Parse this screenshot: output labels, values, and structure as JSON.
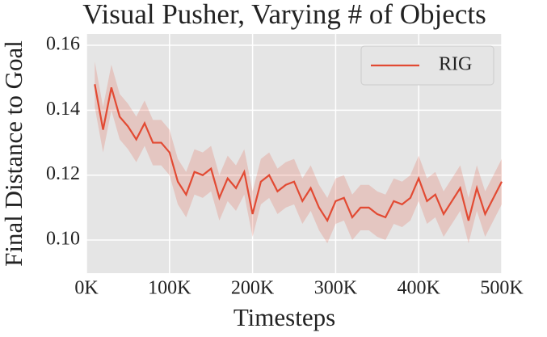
{
  "chart_data": {
    "type": "line",
    "title": "Visual Pusher, Varying # of Objects",
    "xlabel": "Timesteps",
    "ylabel": "Final Distance to Goal",
    "x": [
      10000,
      20000,
      30000,
      40000,
      50000,
      60000,
      70000,
      80000,
      90000,
      100000,
      110000,
      120000,
      130000,
      140000,
      150000,
      160000,
      170000,
      180000,
      190000,
      200000,
      210000,
      220000,
      230000,
      240000,
      250000,
      260000,
      270000,
      280000,
      290000,
      300000,
      310000,
      320000,
      330000,
      340000,
      350000,
      360000,
      370000,
      380000,
      390000,
      400000,
      410000,
      420000,
      430000,
      440000,
      450000,
      460000,
      470000,
      480000,
      490000,
      500000
    ],
    "series": [
      {
        "name": "RIG",
        "color": "#e24a33",
        "values": [
          0.148,
          0.134,
          0.147,
          0.138,
          0.135,
          0.131,
          0.136,
          0.13,
          0.13,
          0.127,
          0.118,
          0.114,
          0.121,
          0.12,
          0.122,
          0.113,
          0.119,
          0.116,
          0.121,
          0.108,
          0.118,
          0.12,
          0.115,
          0.117,
          0.118,
          0.112,
          0.116,
          0.11,
          0.106,
          0.112,
          0.113,
          0.107,
          0.11,
          0.11,
          0.108,
          0.107,
          0.112,
          0.111,
          0.113,
          0.119,
          0.112,
          0.114,
          0.108,
          0.112,
          0.116,
          0.106,
          0.116,
          0.108,
          0.113,
          0.118
        ],
        "upper": [
          0.155,
          0.141,
          0.154,
          0.145,
          0.142,
          0.138,
          0.143,
          0.137,
          0.137,
          0.134,
          0.125,
          0.121,
          0.128,
          0.127,
          0.129,
          0.12,
          0.126,
          0.123,
          0.128,
          0.115,
          0.125,
          0.127,
          0.122,
          0.124,
          0.125,
          0.119,
          0.123,
          0.117,
          0.113,
          0.119,
          0.12,
          0.114,
          0.117,
          0.117,
          0.115,
          0.114,
          0.119,
          0.118,
          0.12,
          0.126,
          0.119,
          0.121,
          0.115,
          0.119,
          0.123,
          0.113,
          0.123,
          0.115,
          0.12,
          0.125
        ],
        "lower": [
          0.141,
          0.127,
          0.14,
          0.131,
          0.128,
          0.124,
          0.129,
          0.123,
          0.123,
          0.12,
          0.111,
          0.107,
          0.114,
          0.113,
          0.115,
          0.106,
          0.112,
          0.109,
          0.114,
          0.101,
          0.111,
          0.113,
          0.108,
          0.11,
          0.111,
          0.105,
          0.109,
          0.103,
          0.099,
          0.105,
          0.106,
          0.1,
          0.103,
          0.103,
          0.101,
          0.1,
          0.105,
          0.104,
          0.106,
          0.112,
          0.105,
          0.107,
          0.101,
          0.105,
          0.109,
          0.099,
          0.109,
          0.101,
          0.106,
          0.111
        ]
      }
    ],
    "xlim": [
      0,
      500000
    ],
    "xticks": [
      {
        "value": 0,
        "label": "0K"
      },
      {
        "value": 100000,
        "label": "100K"
      },
      {
        "value": 200000,
        "label": "200K"
      },
      {
        "value": 300000,
        "label": "300K"
      },
      {
        "value": 400000,
        "label": "400K"
      },
      {
        "value": 500000,
        "label": "500K"
      }
    ],
    "ylim": [
      0.0898,
      0.1635
    ],
    "yticks": [
      {
        "value": 0.1,
        "label": "0.10"
      },
      0.12,
      0.14,
      0.16
    ],
    "grid": true,
    "legend": "upper right"
  }
}
